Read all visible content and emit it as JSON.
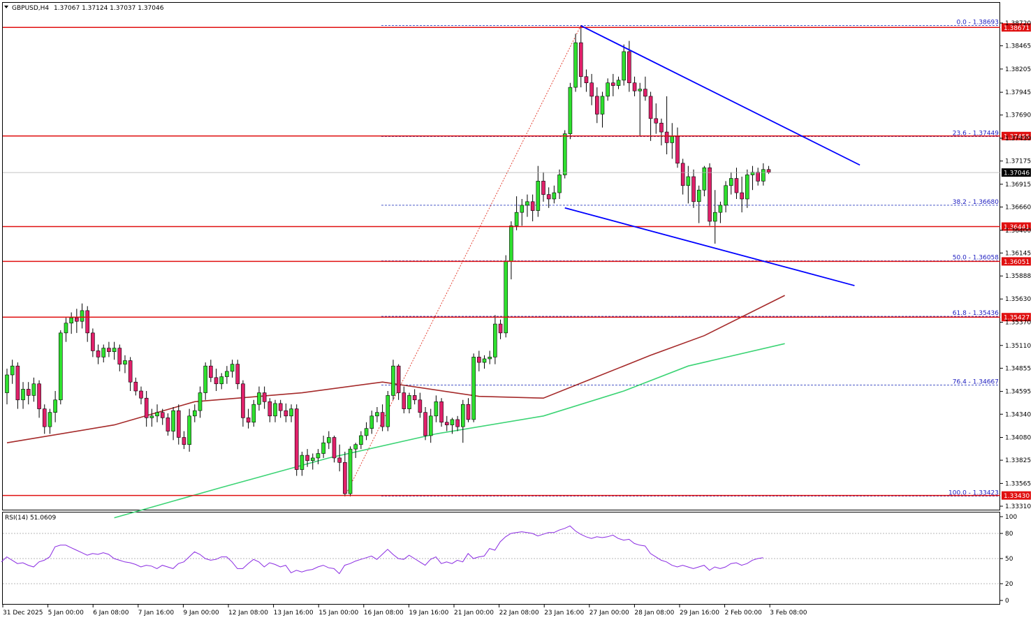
{
  "header": {
    "symbol": "GBPUSD,H4",
    "ohlc": "1.37067 1.37124 1.37037 1.37046"
  },
  "chart_data": [
    {
      "type": "candlestick",
      "title": "GBPUSD,H4",
      "y_range": [
        1.3318,
        1.38755
      ],
      "y_ticks": [
        "1.38720",
        "1.38465",
        "1.38205",
        "1.37945",
        "1.37690",
        "1.37430",
        "1.37175",
        "1.36915",
        "1.36660",
        "1.36400",
        "1.36145",
        "1.35888",
        "1.35630",
        "1.35370",
        "1.35110",
        "1.34855",
        "1.34595",
        "1.34340",
        "1.34080",
        "1.33825",
        "1.33565",
        "1.33310"
      ],
      "x_ticks": [
        "31 Dec 2025",
        "5 Jan 00:00",
        "6 Jan 08:00",
        "7 Jan 16:00",
        "9 Jan 00:00",
        "12 Jan 08:00",
        "13 Jan 16:00",
        "15 Jan 00:00",
        "16 Jan 08:00",
        "19 Jan 16:00",
        "21 Jan 00:00",
        "22 Jan 08:00",
        "23 Jan 16:00",
        "27 Jan 00:00",
        "28 Jan 08:00",
        "29 Jan 16:00",
        "2 Feb 00:00",
        "3 Feb 08:00"
      ],
      "current_price": "1.37046",
      "horizontal_levels": [
        "1.38671",
        "1.37455",
        "1.36441",
        "1.36051",
        "1.35427",
        "1.33430"
      ],
      "fibonacci": [
        {
          "label": "0.0 - 1.38693",
          "value": 1.38693
        },
        {
          "label": "23.6 - 1.37449",
          "value": 1.37449
        },
        {
          "label": "38.2 - 1.36680",
          "value": 1.3668
        },
        {
          "label": "50.0 - 1.36058",
          "value": 1.36058
        },
        {
          "label": "61.8 - 1.35436",
          "value": 1.35436
        },
        {
          "label": "76.4 - 1.34667",
          "value": 1.34667
        },
        {
          "label": "100.0 - 1.33423",
          "value": 1.33423
        }
      ],
      "candles": [
        [
          1.3458,
          1.3485,
          1.3445,
          1.3478
        ],
        [
          1.3478,
          1.3495,
          1.3468,
          1.3488
        ],
        [
          1.3488,
          1.3492,
          1.344,
          1.345
        ],
        [
          1.345,
          1.347,
          1.344,
          1.3462
        ],
        [
          1.3462,
          1.347,
          1.3445,
          1.3455
        ],
        [
          1.3455,
          1.3475,
          1.3448,
          1.3468
        ],
        [
          1.3468,
          1.3472,
          1.343,
          1.344
        ],
        [
          1.344,
          1.3445,
          1.3412,
          1.342
        ],
        [
          1.342,
          1.344,
          1.3412,
          1.3436
        ],
        [
          1.3436,
          1.346,
          1.3425,
          1.345
        ],
        [
          1.345,
          1.3528,
          1.3445,
          1.3525
        ],
        [
          1.3525,
          1.3542,
          1.3515,
          1.3536
        ],
        [
          1.3536,
          1.3548,
          1.3524,
          1.3542
        ],
        [
          1.3542,
          1.3552,
          1.3525,
          1.3538
        ],
        [
          1.3538,
          1.3558,
          1.353,
          1.355
        ],
        [
          1.355,
          1.3555,
          1.3515,
          1.3525
        ],
        [
          1.3525,
          1.353,
          1.3498,
          1.3505
        ],
        [
          1.3505,
          1.3512,
          1.349,
          1.3498
        ],
        [
          1.3498,
          1.3512,
          1.3492,
          1.3508
        ],
        [
          1.3508,
          1.3515,
          1.3498,
          1.3504
        ],
        [
          1.3504,
          1.3515,
          1.3495,
          1.3508
        ],
        [
          1.3508,
          1.3512,
          1.3482,
          1.349
        ],
        [
          1.349,
          1.35,
          1.348,
          1.3494
        ],
        [
          1.3494,
          1.3498,
          1.346,
          1.347
        ],
        [
          1.347,
          1.3475,
          1.3455,
          1.346
        ],
        [
          1.346,
          1.3465,
          1.3445,
          1.3452
        ],
        [
          1.3452,
          1.346,
          1.342,
          1.343
        ],
        [
          1.343,
          1.344,
          1.342,
          1.3432
        ],
        [
          1.3432,
          1.3445,
          1.3425,
          1.3436
        ],
        [
          1.3436,
          1.344,
          1.3422,
          1.343
        ],
        [
          1.343,
          1.3435,
          1.341,
          1.3415
        ],
        [
          1.3415,
          1.3442,
          1.3405,
          1.3438
        ],
        [
          1.3438,
          1.3445,
          1.34,
          1.3408
        ],
        [
          1.3408,
          1.3415,
          1.3395,
          1.34
        ],
        [
          1.34,
          1.344,
          1.3392,
          1.3432
        ],
        [
          1.3432,
          1.3445,
          1.3425,
          1.3438
        ],
        [
          1.3438,
          1.3465,
          1.343,
          1.3458
        ],
        [
          1.3458,
          1.3492,
          1.345,
          1.3488
        ],
        [
          1.3488,
          1.3495,
          1.347,
          1.3475
        ],
        [
          1.3475,
          1.3485,
          1.346,
          1.3468
        ],
        [
          1.3468,
          1.348,
          1.3462,
          1.3476
        ],
        [
          1.3476,
          1.3488,
          1.3468,
          1.3482
        ],
        [
          1.3482,
          1.3495,
          1.3475,
          1.349
        ],
        [
          1.349,
          1.3495,
          1.3462,
          1.3468
        ],
        [
          1.3468,
          1.3472,
          1.342,
          1.343
        ],
        [
          1.343,
          1.344,
          1.3418,
          1.3425
        ],
        [
          1.3425,
          1.345,
          1.342,
          1.3445
        ],
        [
          1.3445,
          1.3465,
          1.3438,
          1.3458
        ],
        [
          1.3458,
          1.3465,
          1.344,
          1.3448
        ],
        [
          1.3448,
          1.3452,
          1.3425,
          1.3432
        ],
        [
          1.3432,
          1.345,
          1.3425,
          1.3446
        ],
        [
          1.3446,
          1.345,
          1.343,
          1.3438
        ],
        [
          1.3438,
          1.3446,
          1.3425,
          1.3432
        ],
        [
          1.3432,
          1.3445,
          1.3425,
          1.344
        ],
        [
          1.344,
          1.3445,
          1.3365,
          1.3372
        ],
        [
          1.3372,
          1.3392,
          1.3365,
          1.3388
        ],
        [
          1.3388,
          1.3395,
          1.3375,
          1.3382
        ],
        [
          1.3382,
          1.339,
          1.3372,
          1.3385
        ],
        [
          1.3385,
          1.3395,
          1.3378,
          1.339
        ],
        [
          1.339,
          1.341,
          1.3385,
          1.3402
        ],
        [
          1.3402,
          1.3415,
          1.3395,
          1.3408
        ],
        [
          1.3408,
          1.341,
          1.338,
          1.3385
        ],
        [
          1.3385,
          1.34,
          1.337,
          1.338
        ],
        [
          1.338,
          1.3392,
          1.3342,
          1.3345
        ],
        [
          1.3345,
          1.3398,
          1.3342,
          1.3395
        ],
        [
          1.3395,
          1.3402,
          1.3385,
          1.34
        ],
        [
          1.34,
          1.3415,
          1.3395,
          1.341
        ],
        [
          1.341,
          1.3425,
          1.3405,
          1.3418
        ],
        [
          1.3418,
          1.3438,
          1.3412,
          1.3432
        ],
        [
          1.3432,
          1.3442,
          1.3425,
          1.3436
        ],
        [
          1.3436,
          1.3445,
          1.3415,
          1.342
        ],
        [
          1.342,
          1.346,
          1.3415,
          1.3455
        ],
        [
          1.3455,
          1.3495,
          1.345,
          1.3488
        ],
        [
          1.3488,
          1.349,
          1.345,
          1.3458
        ],
        [
          1.3458,
          1.3465,
          1.3435,
          1.344
        ],
        [
          1.344,
          1.3458,
          1.3435,
          1.3455
        ],
        [
          1.3455,
          1.3462,
          1.3445,
          1.345
        ],
        [
          1.345,
          1.3458,
          1.343,
          1.3436
        ],
        [
          1.3436,
          1.3442,
          1.3405,
          1.341
        ],
        [
          1.341,
          1.344,
          1.3402,
          1.3432
        ],
        [
          1.3432,
          1.3455,
          1.3425,
          1.3448
        ],
        [
          1.3448,
          1.3452,
          1.342,
          1.3425
        ],
        [
          1.3425,
          1.3432,
          1.3415,
          1.3422
        ],
        [
          1.3422,
          1.343,
          1.3412,
          1.3428
        ],
        [
          1.3428,
          1.3432,
          1.3415,
          1.342
        ],
        [
          1.342,
          1.345,
          1.3402,
          1.3445
        ],
        [
          1.3445,
          1.3452,
          1.3425,
          1.3428
        ],
        [
          1.3428,
          1.3502,
          1.3425,
          1.3498
        ],
        [
          1.3498,
          1.3505,
          1.3482,
          1.3492
        ],
        [
          1.3492,
          1.35,
          1.3485,
          1.3496
        ],
        [
          1.3496,
          1.3505,
          1.349,
          1.3498
        ],
        [
          1.3498,
          1.3545,
          1.349,
          1.3535
        ],
        [
          1.3535,
          1.354,
          1.3518,
          1.3525
        ],
        [
          1.3525,
          1.3612,
          1.352,
          1.3605
        ],
        [
          1.3605,
          1.365,
          1.3585,
          1.3645
        ],
        [
          1.3645,
          1.3678,
          1.364,
          1.366
        ],
        [
          1.366,
          1.3675,
          1.3645,
          1.3668
        ],
        [
          1.3668,
          1.368,
          1.3655,
          1.3672
        ],
        [
          1.3672,
          1.368,
          1.365,
          1.3662
        ],
        [
          1.3662,
          1.3712,
          1.3655,
          1.3695
        ],
        [
          1.3695,
          1.3705,
          1.3672,
          1.368
        ],
        [
          1.368,
          1.3688,
          1.3665,
          1.3675
        ],
        [
          1.3675,
          1.369,
          1.367,
          1.3682
        ],
        [
          1.3682,
          1.3708,
          1.3675,
          1.3702
        ],
        [
          1.3702,
          1.3752,
          1.3698,
          1.3748
        ],
        [
          1.3748,
          1.3805,
          1.3742,
          1.38
        ],
        [
          1.38,
          1.386,
          1.3795,
          1.385
        ],
        [
          1.385,
          1.3869,
          1.38,
          1.3812
        ],
        [
          1.3812,
          1.382,
          1.3795,
          1.3805
        ],
        [
          1.3805,
          1.3815,
          1.378,
          1.379
        ],
        [
          1.379,
          1.38,
          1.376,
          1.377
        ],
        [
          1.377,
          1.3795,
          1.3755,
          1.379
        ],
        [
          1.379,
          1.381,
          1.3785,
          1.3805
        ],
        [
          1.3805,
          1.3815,
          1.379,
          1.3802
        ],
        [
          1.3802,
          1.3812,
          1.3798,
          1.3808
        ],
        [
          1.3808,
          1.3848,
          1.3802,
          1.384
        ],
        [
          1.384,
          1.3852,
          1.3795,
          1.3805
        ],
        [
          1.3805,
          1.3812,
          1.379,
          1.3796
        ],
        [
          1.3796,
          1.3805,
          1.3745,
          1.3798
        ],
        [
          1.3798,
          1.3812,
          1.3785,
          1.379
        ],
        [
          1.379,
          1.3795,
          1.374,
          1.3765
        ],
        [
          1.3765,
          1.3782,
          1.3748,
          1.376
        ],
        [
          1.376,
          1.3765,
          1.3735,
          1.375
        ],
        [
          1.375,
          1.379,
          1.3725,
          1.3738
        ],
        [
          1.3738,
          1.376,
          1.372,
          1.3745
        ],
        [
          1.3745,
          1.3755,
          1.371,
          1.3715
        ],
        [
          1.3715,
          1.372,
          1.368,
          1.369
        ],
        [
          1.369,
          1.3712,
          1.367,
          1.37
        ],
        [
          1.37,
          1.3708,
          1.3665,
          1.3672
        ],
        [
          1.3672,
          1.369,
          1.3648,
          1.3685
        ],
        [
          1.3685,
          1.3712,
          1.3678,
          1.371
        ],
        [
          1.371,
          1.3715,
          1.3645,
          1.365
        ],
        [
          1.365,
          1.3685,
          1.3625,
          1.366
        ],
        [
          1.366,
          1.3672,
          1.3648,
          1.3668
        ],
        [
          1.3668,
          1.3695,
          1.366,
          1.369
        ],
        [
          1.369,
          1.3705,
          1.368,
          1.3698
        ],
        [
          1.3698,
          1.371,
          1.3675,
          1.3682
        ],
        [
          1.3682,
          1.37,
          1.366,
          1.3675
        ],
        [
          1.3675,
          1.3708,
          1.3665,
          1.3702
        ],
        [
          1.3702,
          1.3712,
          1.3685,
          1.3705
        ],
        [
          1.3705,
          1.371,
          1.369,
          1.3695
        ],
        [
          1.3695,
          1.3715,
          1.369,
          1.3708
        ],
        [
          1.3708,
          1.3712,
          1.3703,
          1.3705
        ]
      ],
      "moving_averages": [
        {
          "color": "#a52a2a",
          "points": [
            [
              0,
              1.3402
            ],
            [
              20,
              1.3422
            ],
            [
              35,
              1.3448
            ],
            [
              55,
              1.3458
            ],
            [
              70,
              1.347
            ],
            [
              88,
              1.3454
            ],
            [
              100,
              1.3452
            ],
            [
              110,
              1.3476
            ],
            [
              120,
              1.35
            ],
            [
              130,
              1.3522
            ],
            [
              145,
              1.3567
            ]
          ]
        },
        {
          "color": "#3cd475",
          "points": [
            [
              20,
              1.3318
            ],
            [
              40,
              1.3352
            ],
            [
              60,
              1.3385
            ],
            [
              80,
              1.3412
            ],
            [
              100,
              1.3432
            ],
            [
              115,
              1.346
            ],
            [
              127,
              1.3488
            ],
            [
              145,
              1.3513
            ]
          ]
        }
      ],
      "channel_lines": [
        {
          "from": [
            107,
            1.3869
          ],
          "to": [
            159,
            1.3713
          ],
          "color": "#0000ff"
        },
        {
          "from": [
            104,
            1.3665
          ],
          "to": [
            158,
            1.3578
          ],
          "color": "#0000ff"
        }
      ],
      "fib_swing": {
        "from": [
          63,
          1.33423
        ],
        "to": [
          107,
          1.38693
        ]
      }
    },
    {
      "type": "line",
      "title": "RSI(14) 51.0609",
      "y_range": [
        0,
        100
      ],
      "y_ticks": [
        "100",
        "80",
        "50",
        "20",
        "0"
      ],
      "levels": [
        80,
        50,
        20
      ],
      "values": [
        46,
        52,
        48,
        44,
        45,
        42,
        40,
        46,
        48,
        52,
        64,
        66,
        66,
        63,
        60,
        57,
        54,
        56,
        55,
        57,
        55,
        50,
        48,
        46,
        45,
        43,
        40,
        42,
        41,
        38,
        42,
        40,
        38,
        44,
        46,
        52,
        58,
        55,
        50,
        48,
        49,
        52,
        52,
        46,
        38,
        38,
        44,
        49,
        46,
        40,
        45,
        43,
        40,
        42,
        33,
        36,
        34,
        36,
        37,
        40,
        42,
        39,
        38,
        32,
        42,
        44,
        47,
        49,
        51,
        53,
        49,
        55,
        61,
        55,
        50,
        49,
        54,
        50,
        46,
        42,
        49,
        52,
        44,
        46,
        44,
        48,
        46,
        56,
        50,
        52,
        53,
        62,
        60,
        70,
        76,
        80,
        81,
        82,
        81,
        80,
        77,
        79,
        81,
        81,
        84,
        86,
        89,
        83,
        79,
        76,
        74,
        76,
        75,
        76,
        78,
        74,
        72,
        73,
        68,
        66,
        65,
        56,
        52,
        48,
        46,
        42,
        40,
        42,
        40,
        38,
        40,
        42,
        36,
        40,
        38,
        40,
        44,
        45,
        42,
        44,
        48,
        50,
        51
      ]
    }
  ]
}
